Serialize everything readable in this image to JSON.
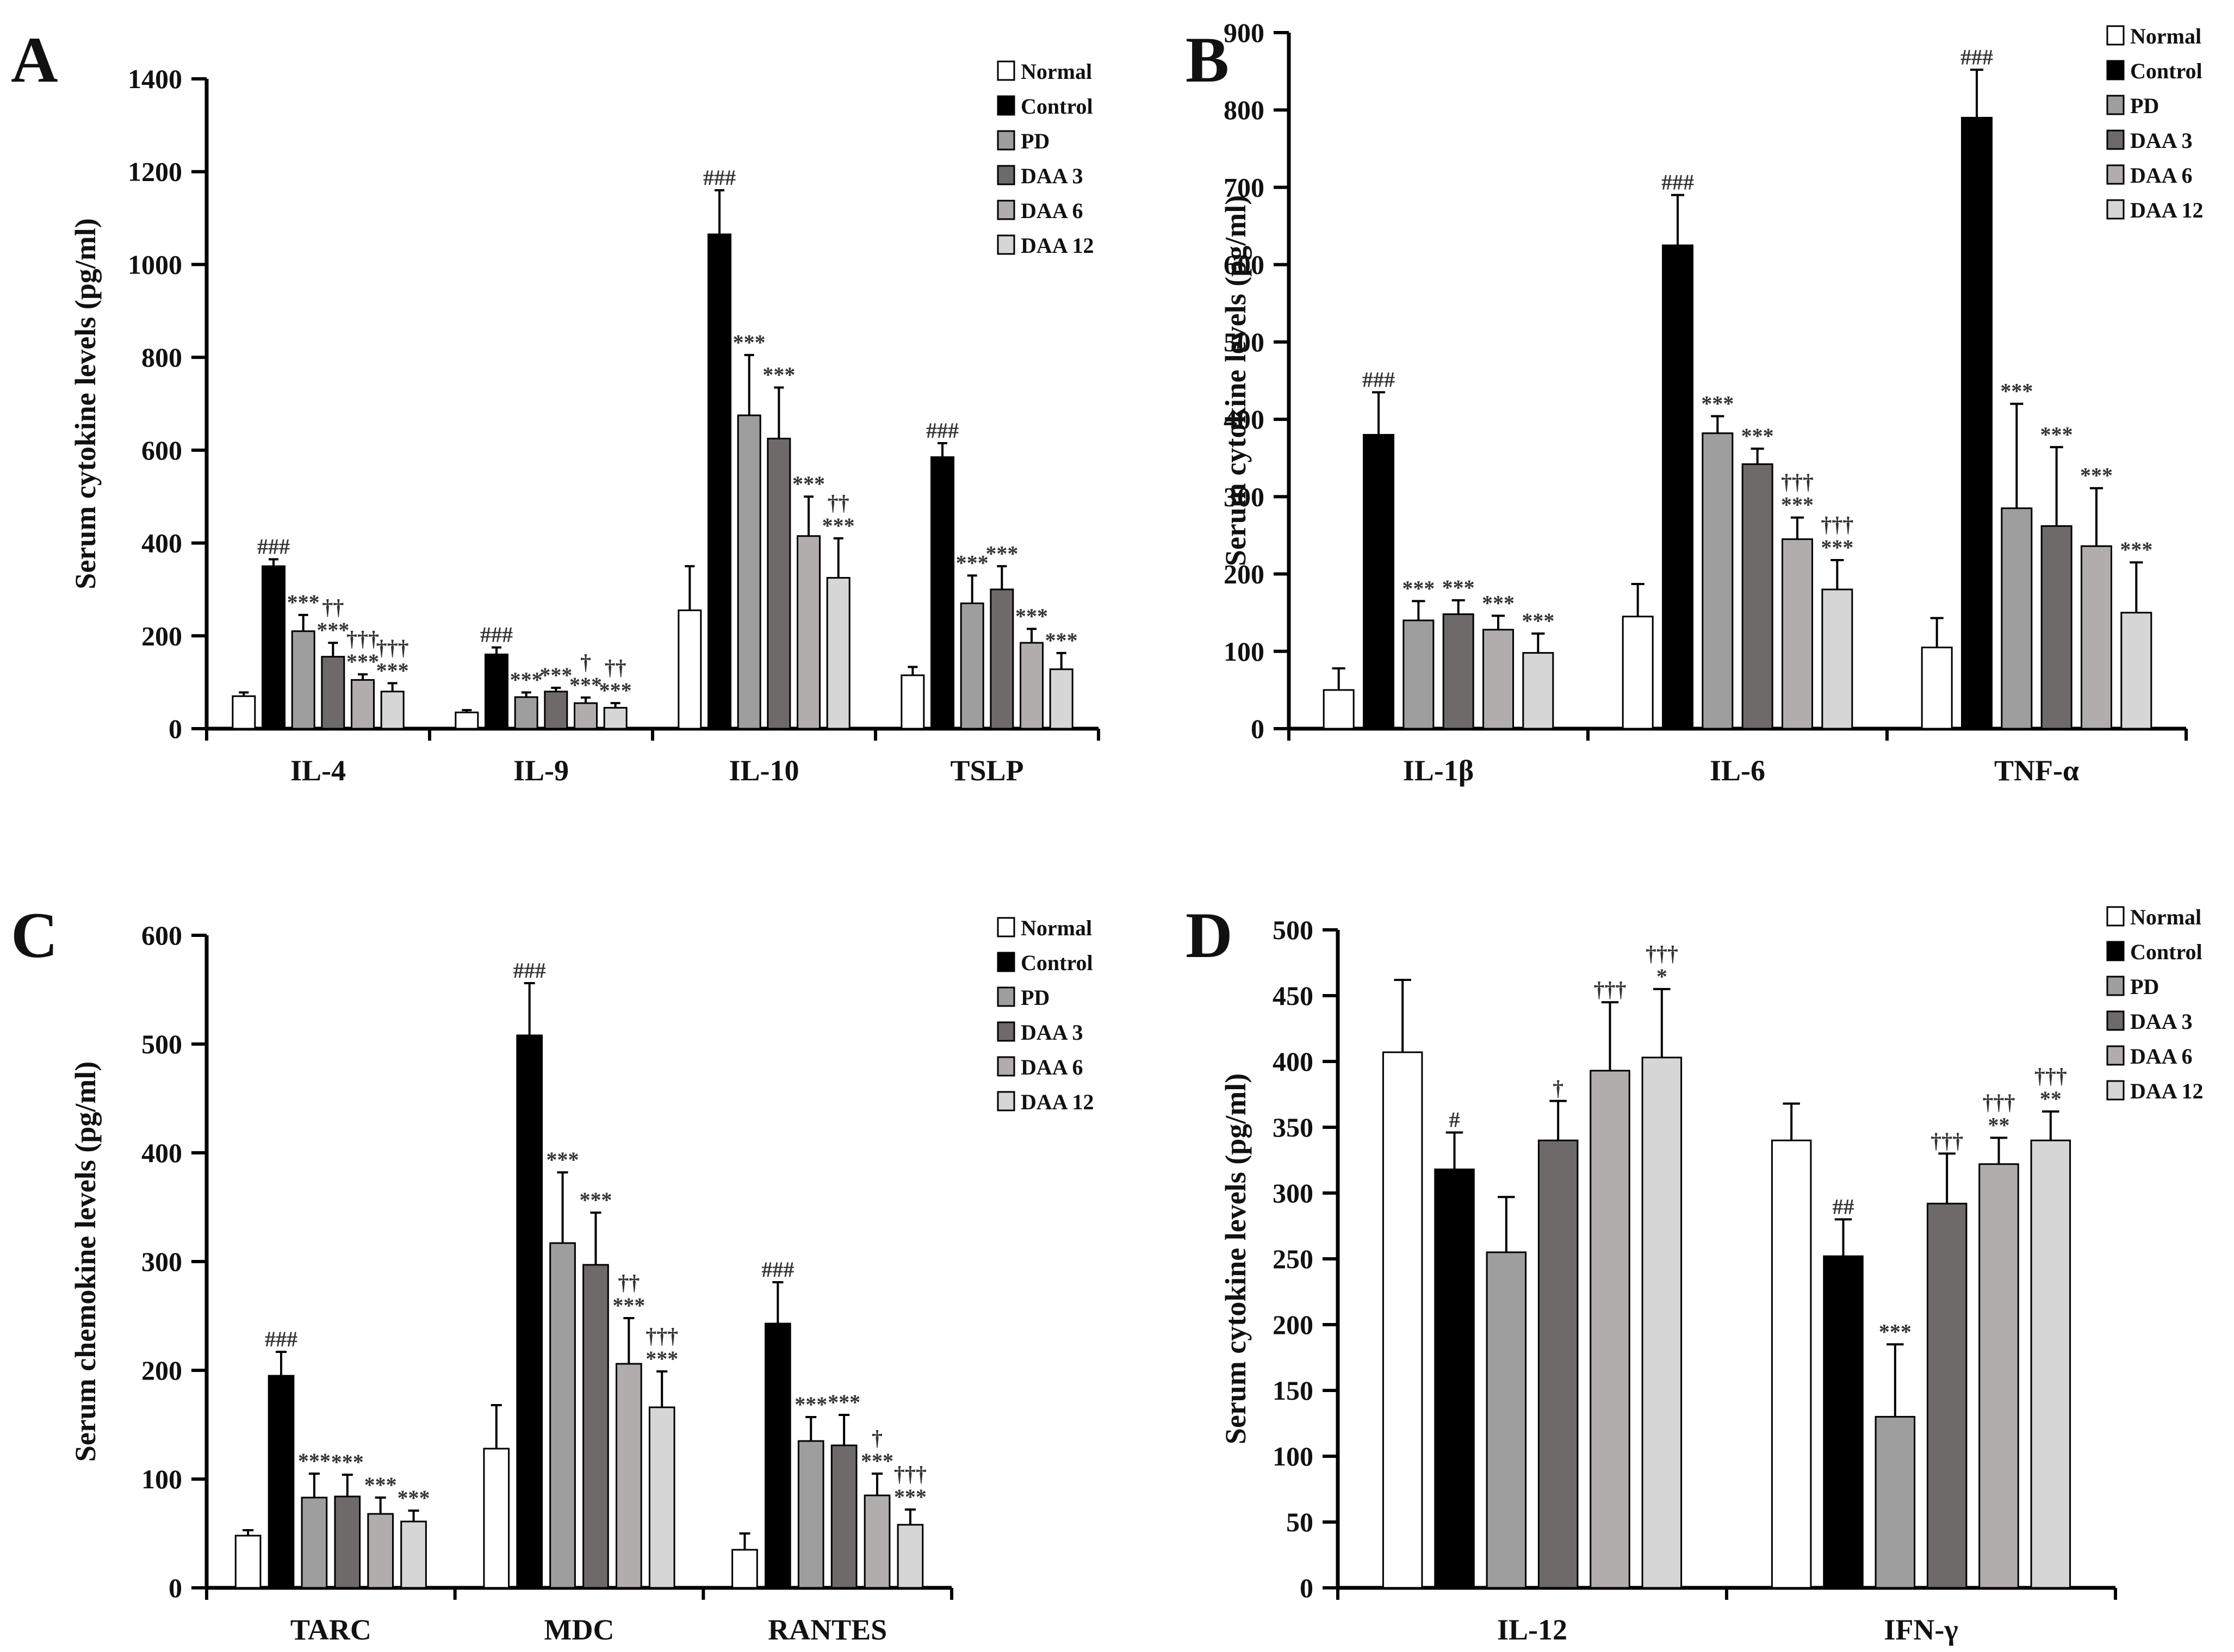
{
  "colors": {
    "Normal": "#ffffff",
    "Control": "#000000",
    "PD": "#9e9e9e",
    "DAA 3": "#6f6a6a",
    "DAA 6": "#b1adad",
    "DAA 12": "#d6d6d6"
  },
  "chart_data": [
    {
      "panel": "A",
      "type": "bar",
      "ylabel": "Serum cytokine levels  (pg/ml)",
      "ylim": [
        0,
        1400
      ],
      "yticks": [
        0,
        200,
        400,
        600,
        800,
        1000,
        1200,
        1400
      ],
      "legend": "top-right",
      "categories": [
        "IL-4",
        "IL-9",
        "IL-10",
        "TSLP"
      ],
      "series": [
        {
          "name": "Normal",
          "values": [
            70,
            35,
            255,
            115
          ],
          "errors": [
            8,
            5,
            95,
            18
          ]
        },
        {
          "name": "Control",
          "values": [
            350,
            160,
            1065,
            585
          ],
          "errors": [
            15,
            15,
            95,
            30
          ]
        },
        {
          "name": "PD",
          "values": [
            210,
            68,
            675,
            270
          ],
          "errors": [
            35,
            10,
            130,
            60
          ]
        },
        {
          "name": "DAA 3",
          "values": [
            155,
            80,
            625,
            300
          ],
          "errors": [
            30,
            8,
            110,
            50
          ]
        },
        {
          "name": "DAA 6",
          "values": [
            105,
            55,
            415,
            185
          ],
          "errors": [
            12,
            12,
            85,
            30
          ]
        },
        {
          "name": "DAA 12",
          "values": [
            80,
            45,
            325,
            128
          ],
          "errors": [
            18,
            10,
            85,
            35
          ]
        }
      ],
      "annotations": [
        [
          "",
          "###",
          "***",
          "††\n***",
          "†††\n***",
          "†††\n***"
        ],
        [
          "",
          "###",
          "***",
          "***",
          "†\n***",
          "††\n***"
        ],
        [
          "",
          "###",
          "***",
          "***",
          "***",
          "††\n***"
        ],
        [
          "",
          "###",
          "***",
          "***",
          "***",
          "***"
        ]
      ]
    },
    {
      "panel": "B",
      "type": "bar",
      "ylabel": "Serum cytokine levels  (pg/ml)",
      "ylim": [
        0,
        900
      ],
      "yticks": [
        0,
        100,
        200,
        300,
        400,
        500,
        600,
        700,
        800,
        900
      ],
      "legend": "top-right",
      "categories": [
        "IL-1β",
        "IL-6",
        "TNF-α"
      ],
      "series": [
        {
          "name": "Normal",
          "values": [
            50,
            145,
            105
          ],
          "errors": [
            28,
            42,
            38
          ]
        },
        {
          "name": "Control",
          "values": [
            380,
            625,
            790
          ],
          "errors": [
            55,
            65,
            62
          ]
        },
        {
          "name": "PD",
          "values": [
            140,
            382,
            285
          ],
          "errors": [
            25,
            22,
            135
          ]
        },
        {
          "name": "DAA 3",
          "values": [
            148,
            342,
            262
          ],
          "errors": [
            18,
            20,
            102
          ]
        },
        {
          "name": "DAA 6",
          "values": [
            128,
            245,
            236
          ],
          "errors": [
            18,
            28,
            75
          ]
        },
        {
          "name": "DAA 12",
          "values": [
            98,
            180,
            150
          ],
          "errors": [
            25,
            38,
            65
          ]
        }
      ],
      "annotations": [
        [
          "",
          "###",
          "***",
          "***",
          "***",
          "***"
        ],
        [
          "",
          "###",
          "***",
          "***",
          "†††\n***",
          "†††\n***"
        ],
        [
          "",
          "###",
          "***",
          "***",
          "***",
          "***"
        ]
      ]
    },
    {
      "panel": "C",
      "type": "bar",
      "ylabel": "Serum chemokine levels  (pg/ml)",
      "ylim": [
        0,
        600
      ],
      "yticks": [
        0,
        100,
        200,
        300,
        400,
        500,
        600
      ],
      "legend": "top-right",
      "categories": [
        "TARC",
        "MDC",
        "RANTES"
      ],
      "series": [
        {
          "name": "Normal",
          "values": [
            48,
            128,
            35
          ],
          "errors": [
            5,
            40,
            15
          ]
        },
        {
          "name": "Control",
          "values": [
            195,
            508,
            243
          ],
          "errors": [
            22,
            48,
            38
          ]
        },
        {
          "name": "PD",
          "values": [
            83,
            317,
            135
          ],
          "errors": [
            22,
            65,
            22
          ]
        },
        {
          "name": "DAA 3",
          "values": [
            84,
            297,
            131
          ],
          "errors": [
            20,
            48,
            28
          ]
        },
        {
          "name": "DAA 6",
          "values": [
            68,
            206,
            85
          ],
          "errors": [
            15,
            42,
            20
          ]
        },
        {
          "name": "DAA 12",
          "values": [
            61,
            166,
            58
          ],
          "errors": [
            10,
            33,
            14
          ]
        }
      ],
      "annotations": [
        [
          "",
          "###",
          "***",
          "***",
          "***",
          "***"
        ],
        [
          "",
          "###",
          "***",
          "***",
          "††\n***",
          "†††\n***"
        ],
        [
          "",
          "###",
          "***",
          "***",
          "†\n***",
          "†††\n***"
        ]
      ]
    },
    {
      "panel": "D",
      "type": "bar",
      "ylabel": "Serum cytokine levels  (pg/ml)",
      "ylim": [
        0,
        500
      ],
      "yticks": [
        0,
        50,
        100,
        150,
        200,
        250,
        300,
        350,
        400,
        450,
        500
      ],
      "legend": "top-right",
      "categories": [
        "IL-12",
        "IFN-γ"
      ],
      "series": [
        {
          "name": "Normal",
          "values": [
            407,
            340
          ],
          "errors": [
            55,
            28
          ]
        },
        {
          "name": "Control",
          "values": [
            318,
            252
          ],
          "errors": [
            28,
            28
          ]
        },
        {
          "name": "PD",
          "values": [
            255,
            130
          ],
          "errors": [
            42,
            55
          ]
        },
        {
          "name": "DAA 3",
          "values": [
            340,
            292
          ],
          "errors": [
            30,
            38
          ]
        },
        {
          "name": "DAA 6",
          "values": [
            393,
            322
          ],
          "errors": [
            52,
            20
          ]
        },
        {
          "name": "DAA 12",
          "values": [
            403,
            340
          ],
          "errors": [
            52,
            22
          ]
        }
      ],
      "annotations": [
        [
          "",
          "#",
          "",
          "†",
          "†††",
          "†††\n*"
        ],
        [
          "",
          "##",
          "***",
          "†††",
          "†††\n**",
          "†††\n**"
        ]
      ]
    }
  ]
}
